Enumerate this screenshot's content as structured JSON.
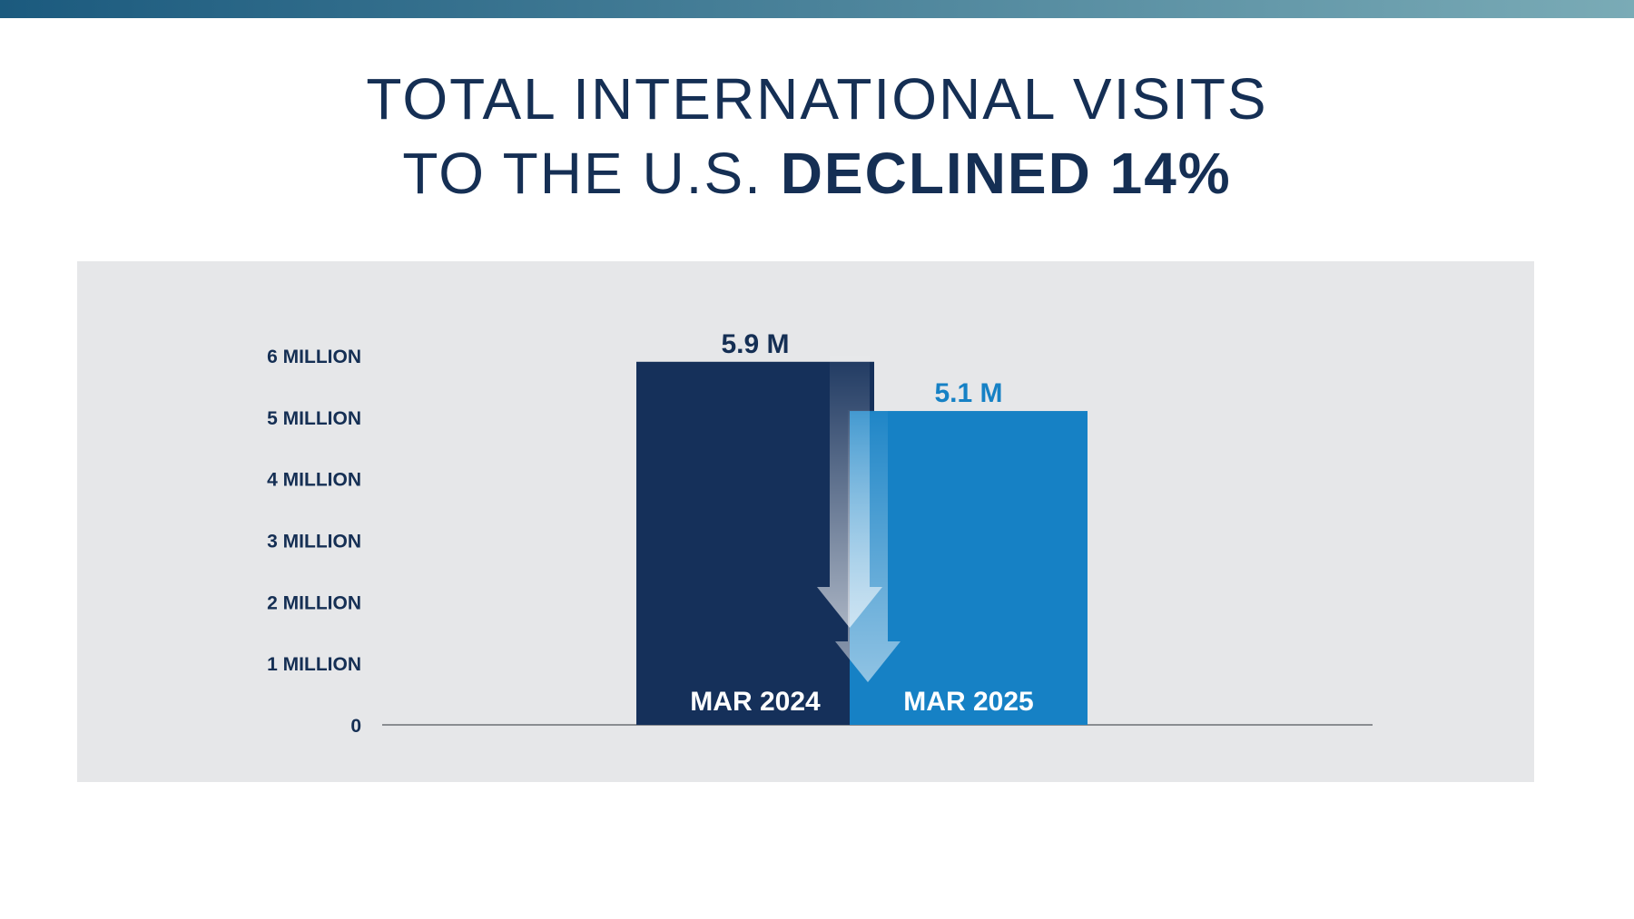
{
  "title": {
    "line1": "TOTAL INTERNATIONAL VISITS",
    "line2_regular": "TO THE U.S. ",
    "line2_bold": "DECLINED 14%"
  },
  "colors": {
    "bar_2024": "#15305a",
    "bar_2025": "#1681c5",
    "label_2024": "#152f54",
    "label_2025": "#1681c5",
    "panel": "#e6e7e9",
    "top_bar_start": "#1b5a7e",
    "top_bar_end": "#7aabb6"
  },
  "chart_data": {
    "type": "bar",
    "categories": [
      "MAR 2024",
      "MAR 2025"
    ],
    "values": [
      5.9,
      5.1
    ],
    "value_labels": [
      "5.9 M",
      "5.1 M"
    ],
    "unit": "million visits",
    "ylim": [
      0,
      6
    ],
    "yticks": [
      0,
      1,
      2,
      3,
      4,
      5,
      6
    ],
    "ytick_labels": [
      "0",
      "1 MILLION",
      "2 MILLION",
      "3 MILLION",
      "4 MILLION",
      "5 MILLION",
      "6 MILLION"
    ],
    "grid": false,
    "legend": "none",
    "annotation": "downward arrow indicating decline"
  }
}
